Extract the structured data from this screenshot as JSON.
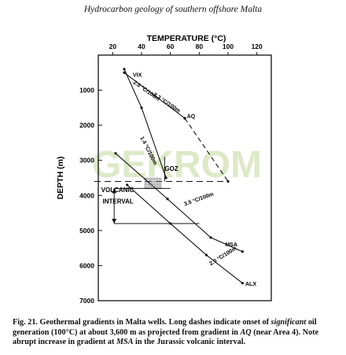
{
  "page": {
    "header": "Hydrocarbon geology of southern offshore Malta"
  },
  "caption": {
    "fig": "Fig. 21. Geothermal gradients in Malta wells. Long dashes indicate onset of ",
    "em1": "significant",
    "t2": " oil generation (100°C) at about 3,600 m as projected from gradient in ",
    "em2": "AQ",
    "t3": " (near Area 4). Note abrupt increase in gradient at ",
    "em3": "MSA",
    "t4": " in the Jurassic volcanic interval."
  },
  "watermark": "GEKROM",
  "chart_data": {
    "type": "line",
    "xlabel": "TEMPERATURE (°C)",
    "ylabel": "DEPTH (m)",
    "xlim": [
      10,
      130
    ],
    "ylim": [
      7000,
      0
    ],
    "xticks": [
      20,
      40,
      60,
      80,
      100,
      120
    ],
    "yticks": [
      1000,
      2000,
      3000,
      4000,
      5000,
      6000,
      7000
    ],
    "series": [
      {
        "name": "AQ",
        "style": "solid",
        "points": [
          [
            28,
            500
          ],
          [
            70,
            1800
          ]
        ]
      },
      {
        "name": "AQ",
        "style": "dashed",
        "points": [
          [
            70,
            1800
          ],
          [
            100,
            3600
          ]
        ]
      },
      {
        "name": "VIX",
        "style": "solid",
        "points": [
          [
            28,
            400
          ],
          [
            40,
            1500
          ],
          [
            57,
            3500
          ]
        ]
      },
      {
        "name": "MSA",
        "style": "solid",
        "points": [
          [
            22,
            2800
          ],
          [
            58,
            4100
          ],
          [
            88,
            5200
          ],
          [
            110,
            5600
          ]
        ]
      },
      {
        "name": "ALX",
        "style": "solid",
        "points": [
          [
            30,
            3700
          ],
          [
            60,
            4800
          ],
          [
            85,
            5700
          ],
          [
            110,
            6500
          ]
        ]
      }
    ],
    "gradient_labels": [
      "2.0 °C/100m",
      "2.3 °C/100m",
      "1.4 °C/100m",
      "3.5 °C/100m",
      "2.0 °C/100m"
    ],
    "annotations": [
      {
        "text": "GOZ",
        "x": 56,
        "y": 3300
      },
      {
        "text": "VOLCANIC",
        "x": 12,
        "y": 3900
      },
      {
        "text": "INTERVAL",
        "x": 13,
        "y": 4230
      }
    ],
    "volcanic_interval": [
      3800,
      4800
    ]
  }
}
